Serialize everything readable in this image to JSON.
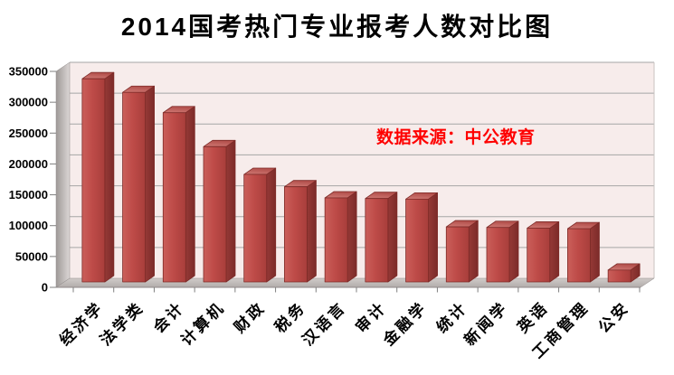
{
  "title": "2014国考热门专业报考人数对比图",
  "annotation": {
    "text": "数据来源：中公教育",
    "color": "#FE0000"
  },
  "chart_data": {
    "type": "bar",
    "style": "3d-column",
    "title": "2014国考热门专业报考人数对比图",
    "categories": [
      "经济学",
      "法学类",
      "会计",
      "计算机",
      "财政",
      "税务",
      "汉语言",
      "审计",
      "金融学",
      "统计",
      "新闻学",
      "英语",
      "工商管理",
      "公安"
    ],
    "values": [
      338000,
      316000,
      283000,
      228000,
      183000,
      163000,
      145000,
      144000,
      143000,
      98000,
      97000,
      96000,
      95000,
      28000
    ],
    "xlabel": "",
    "ylabel": "",
    "ylim": [
      0,
      350000
    ],
    "ytick_step": 50000,
    "ytick_labels": [
      "0",
      "50000",
      "100000",
      "150000",
      "200000",
      "250000",
      "300000",
      "350000"
    ],
    "grid": true,
    "legend": "none",
    "annotation": "数据来源：中公教育"
  },
  "colors": {
    "bar_front": "#BE4B48",
    "bar_front_light": "#CA5F5A",
    "bar_front_dark": "#A83E3B",
    "bar_top": "#B24F4B",
    "bar_top_light": "#D07A75",
    "bar_side": "#953936",
    "bar_side_dark": "#7C2B29",
    "bar_outline": "#7E2B28",
    "wall": "#F7ECEB",
    "gridline": "#A6A6A6",
    "wall_edge": "#C8C3C2",
    "side_wall_dark": "#9E9997",
    "side_wall_light": "#DCD7D6",
    "floor_light": "#CFCAC8",
    "floor_dark": "#B2ACAA",
    "edge_line": "#8F8A89",
    "tick": "#7F7F7F",
    "axis_text": "#000000"
  }
}
